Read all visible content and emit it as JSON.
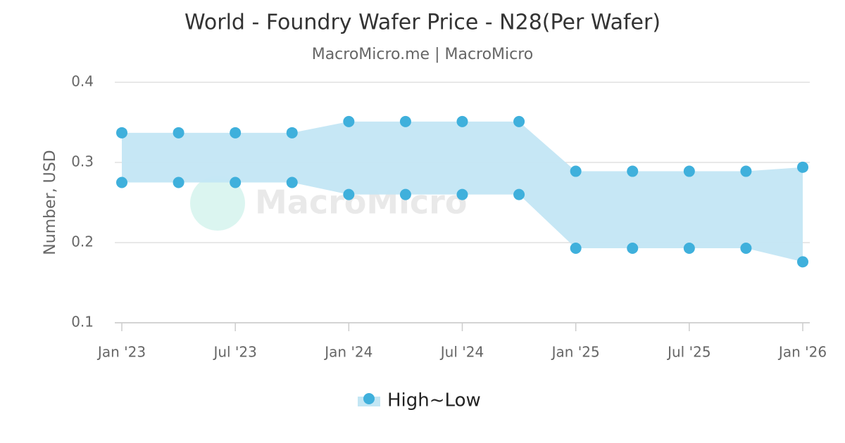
{
  "chart_data": {
    "type": "arearange",
    "title": "World - Foundry Wafer Price - N28(Per Wafer)",
    "subtitle": "MacroMicro.me | MacroMicro",
    "watermark": "MacroMicro",
    "y_label": "Number, USD",
    "x": [
      "2023-01",
      "2023-04",
      "2023-07",
      "2023-10",
      "2024-01",
      "2024-04",
      "2024-07",
      "2024-10",
      "2025-01",
      "2025-04",
      "2025-07",
      "2025-10",
      "2026-01"
    ],
    "xticks": [
      {
        "value": "2023-01",
        "label": "Jan '23"
      },
      {
        "value": "2023-07",
        "label": "Jul '23"
      },
      {
        "value": "2024-01",
        "label": "Jan '24"
      },
      {
        "value": "2024-07",
        "label": "Jul '24"
      },
      {
        "value": "2025-01",
        "label": "Jan '25"
      },
      {
        "value": "2025-07",
        "label": "Jul '25"
      },
      {
        "value": "2026-01",
        "label": "Jan '26"
      }
    ],
    "ylim": [
      0.1,
      0.4
    ],
    "yticks": [
      0.1,
      0.2,
      0.3,
      0.4
    ],
    "grid": true,
    "legend": "bottom",
    "series": [
      {
        "name": "High~Low",
        "color": "#3fb0dc",
        "fill": "#c3e6f4",
        "high": [
          0.337,
          0.337,
          0.337,
          0.337,
          0.351,
          0.351,
          0.351,
          0.351,
          0.289,
          0.289,
          0.289,
          0.289,
          0.294
        ],
        "low": [
          0.275,
          0.275,
          0.275,
          0.275,
          0.26,
          0.26,
          0.26,
          0.26,
          0.193,
          0.193,
          0.193,
          0.193,
          0.176
        ]
      }
    ]
  }
}
